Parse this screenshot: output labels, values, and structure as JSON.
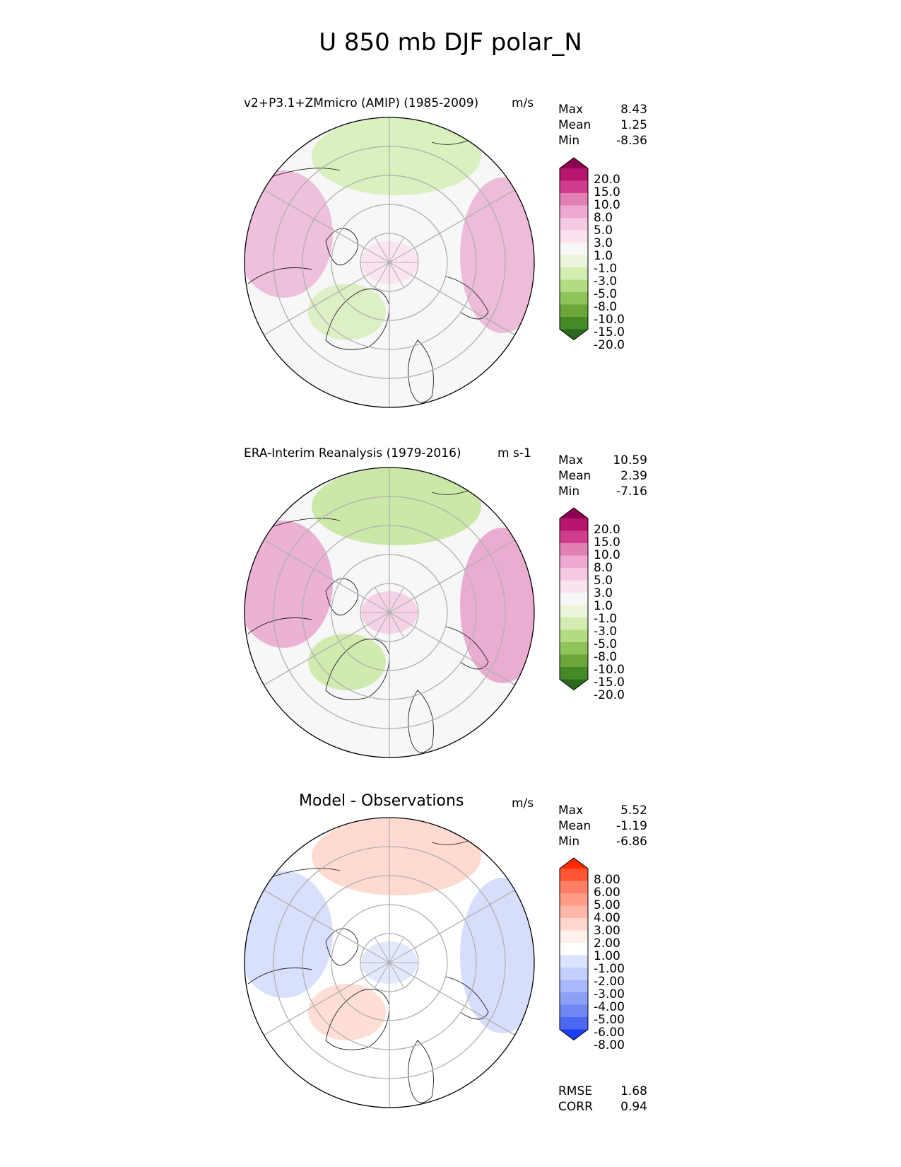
{
  "title": "U 850 mb DJF polar_N",
  "panels": [
    {
      "title": "v2+P3.1+ZMmicro (AMIP) (1985-2009)",
      "units": "m/s",
      "stats": [
        {
          "label": "Max",
          "value": "8.43"
        },
        {
          "label": "Mean",
          "value": "1.25"
        },
        {
          "label": "Min",
          "value": "-8.36"
        }
      ],
      "colorbar": {
        "labels": [
          "20.0",
          "15.0",
          "10.0",
          "8.0",
          "5.0",
          "3.0",
          "1.0",
          "-1.0",
          "-3.0",
          "-5.0",
          "-8.0",
          "-10.0",
          "-15.0",
          "-20.0"
        ],
        "colors": [
          "#8e0152",
          "#b8156e",
          "#d03d8c",
          "#e27fb5",
          "#eea8d1",
          "#f6c9e2",
          "#fae3ef",
          "#f7f7f7",
          "#ebf5dc",
          "#d2ecb2",
          "#b3dc82",
          "#8ec45a",
          "#6aa63a",
          "#458a27",
          "#2b6a1c"
        ]
      },
      "map": {
        "background": "#f7f7f7",
        "rim": "#eaa8cf",
        "inner": "#fbe4f0",
        "green": "#d6eeb8"
      }
    },
    {
      "title": "ERA-Interim Reanalysis (1979-2016)",
      "units": "m s-1",
      "stats": [
        {
          "label": "Max",
          "value": "10.59"
        },
        {
          "label": "Mean",
          "value": "2.39"
        },
        {
          "label": "Min",
          "value": "-7.16"
        }
      ],
      "colorbar": {
        "labels": [
          "20.0",
          "15.0",
          "10.0",
          "8.0",
          "5.0",
          "3.0",
          "1.0",
          "-1.0",
          "-3.0",
          "-5.0",
          "-8.0",
          "-10.0",
          "-15.0",
          "-20.0"
        ],
        "colors": [
          "#8e0152",
          "#b8156e",
          "#d03d8c",
          "#e27fb5",
          "#eea8d1",
          "#f6c9e2",
          "#fae3ef",
          "#f7f7f7",
          "#ebf5dc",
          "#d2ecb2",
          "#b3dc82",
          "#8ec45a",
          "#6aa63a",
          "#458a27",
          "#2b6a1c"
        ]
      },
      "map": {
        "background": "#f7f7f7",
        "rim": "#e694c4",
        "inner": "#f6d2e6",
        "green": "#c6e69e"
      }
    },
    {
      "title": "Model - Observations",
      "units": "m/s",
      "stats": [
        {
          "label": "Max",
          "value": "5.52"
        },
        {
          "label": "Mean",
          "value": "-1.19"
        },
        {
          "label": "Min",
          "value": "-6.86"
        }
      ],
      "colorbar": {
        "labels": [
          "8.00",
          "6.00",
          "5.00",
          "4.00",
          "3.00",
          "2.00",
          "1.00",
          "-1.00",
          "-2.00",
          "-3.00",
          "-4.00",
          "-5.00",
          "-6.00",
          "-8.00"
        ],
        "colors": [
          "#ff2a00",
          "#ff5533",
          "#ff7f66",
          "#ff9b87",
          "#ffb7a8",
          "#ffd6cc",
          "#fff0ec",
          "#ffffff",
          "#dde4ff",
          "#c4d0ff",
          "#a8b8fb",
          "#8ca0f7",
          "#6f87f3",
          "#4c67f0",
          "#1a3ff0"
        ]
      },
      "map": {
        "background": "#ffffff",
        "rim": "#c9d3fa",
        "inner": "#e3e8fd",
        "green": "#ffd6cc"
      },
      "extra_stats": [
        {
          "label": "RMSE",
          "value": "1.68"
        },
        {
          "label": "CORR",
          "value": "0.94"
        }
      ]
    }
  ]
}
